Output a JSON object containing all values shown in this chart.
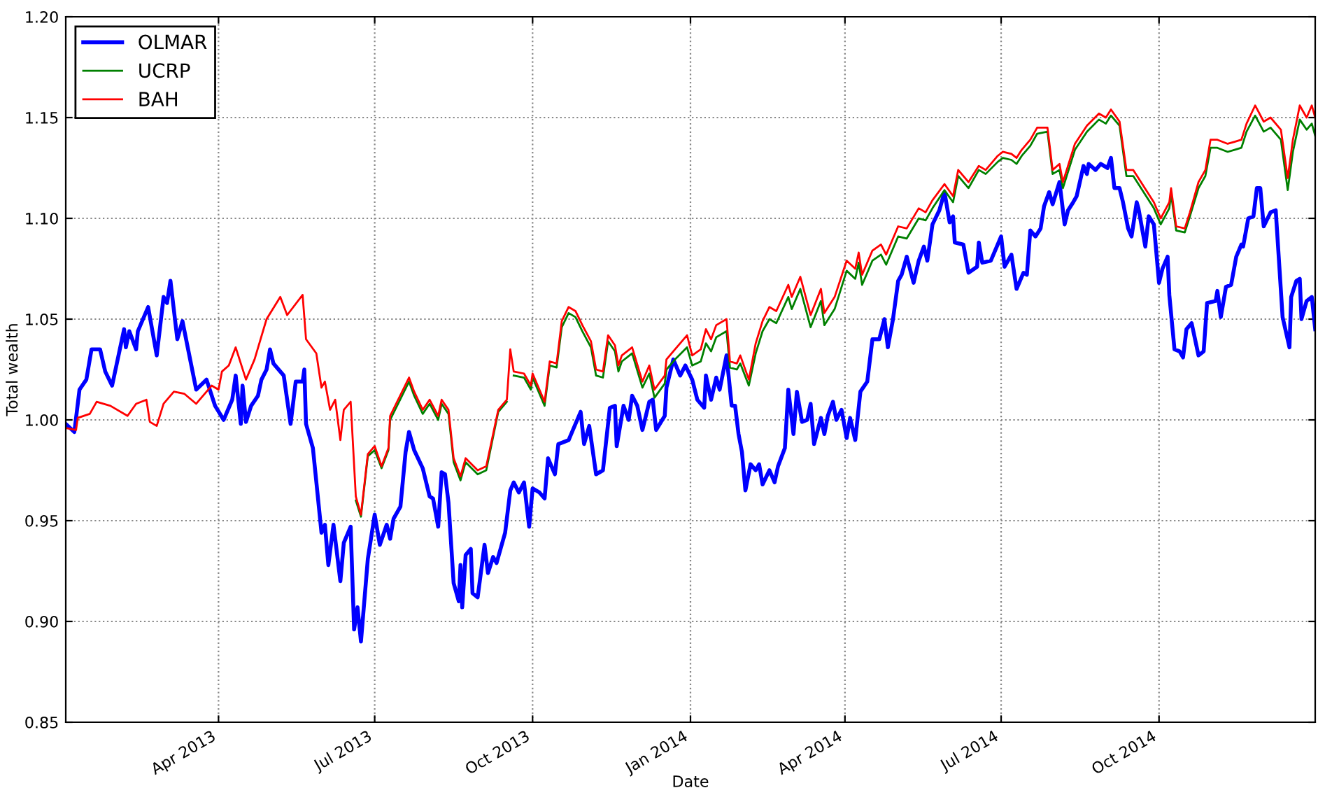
{
  "chart_data": {
    "type": "line",
    "xlabel": "Date",
    "ylabel": "Total wealth",
    "xlim": [
      "2013-01-02",
      "2014-12-31"
    ],
    "ylim": [
      0.85,
      1.2
    ],
    "xticks": [
      {
        "value": "2013-04-01",
        "label": "Apr 2013"
      },
      {
        "value": "2013-07-01",
        "label": "Jul 2013"
      },
      {
        "value": "2013-10-01",
        "label": "Oct 2013"
      },
      {
        "value": "2014-01-01",
        "label": "Jan 2014"
      },
      {
        "value": "2014-04-01",
        "label": "Apr 2014"
      },
      {
        "value": "2014-07-01",
        "label": "Jul 2014"
      },
      {
        "value": "2014-10-01",
        "label": "Oct 2014"
      }
    ],
    "yticks": [
      {
        "value": 0.85,
        "label": "0.85"
      },
      {
        "value": 0.9,
        "label": "0.90"
      },
      {
        "value": 0.95,
        "label": "0.95"
      },
      {
        "value": 1.0,
        "label": "1.00"
      },
      {
        "value": 1.05,
        "label": "1.05"
      },
      {
        "value": 1.1,
        "label": "1.10"
      },
      {
        "value": 1.15,
        "label": "1.15"
      },
      {
        "value": 1.2,
        "label": "1.20"
      }
    ],
    "grid": true,
    "legend": "top left",
    "marker": "none",
    "line_style": "solid",
    "x": [
      "2013-01-02",
      "2013-01-08",
      "2013-01-09",
      "2013-01-16",
      "2013-01-20",
      "2013-01-28",
      "2013-02-07",
      "2013-02-12",
      "2013-02-18",
      "2013-02-20",
      "2013-02-24",
      "2013-02-28",
      "2013-03-06",
      "2013-03-12",
      "2013-03-19",
      "2013-03-28",
      "2013-04-01",
      "2013-04-03",
      "2013-04-07",
      "2013-04-11",
      "2013-04-17",
      "2013-04-22",
      "2013-04-29",
      "2013-05-07",
      "2013-05-11",
      "2013-05-20",
      "2013-05-22",
      "2013-05-28",
      "2013-05-31",
      "2013-06-02",
      "2013-06-05",
      "2013-06-08",
      "2013-06-11",
      "2013-06-13",
      "2013-06-17",
      "2013-06-20",
      "2013-06-23",
      "2013-06-27",
      "2013-07-01",
      "2013-07-05",
      "2013-07-09",
      "2013-07-10",
      "2013-07-21",
      "2013-07-24",
      "2013-07-29",
      "2013-08-02",
      "2013-08-07",
      "2013-08-09",
      "2013-08-13",
      "2013-08-16",
      "2013-08-20",
      "2013-08-23",
      "2013-08-30",
      "2013-09-04",
      "2013-09-11",
      "2013-09-16",
      "2013-09-18",
      "2013-09-20",
      "2013-09-26",
      "2013-09-30",
      "2013-10-01",
      "2013-10-08",
      "2013-10-11",
      "2013-10-15",
      "2013-10-18",
      "2013-10-22",
      "2013-10-26",
      "2013-10-30",
      "2013-11-04",
      "2013-11-07",
      "2013-11-11",
      "2013-11-14",
      "2013-11-18",
      "2013-11-20",
      "2013-11-22",
      "2013-11-28",
      "2013-12-04",
      "2013-12-08",
      "2013-12-11",
      "2013-12-17",
      "2013-12-18",
      "2013-12-23",
      "2013-12-30",
      "2014-01-02",
      "2014-01-07",
      "2014-01-10",
      "2014-01-13",
      "2014-01-16",
      "2014-01-22",
      "2014-01-24",
      "2014-01-28",
      "2014-01-30",
      "2014-02-04",
      "2014-02-08",
      "2014-02-12",
      "2014-02-16",
      "2014-02-20",
      "2014-02-27",
      "2014-03-01",
      "2014-03-06",
      "2014-03-12",
      "2014-03-18",
      "2014-03-20",
      "2014-03-26",
      "2014-04-02",
      "2014-04-07",
      "2014-04-09",
      "2014-04-11",
      "2014-04-17",
      "2014-04-22",
      "2014-04-25",
      "2014-05-02",
      "2014-05-07",
      "2014-05-14",
      "2014-05-18",
      "2014-05-22",
      "2014-05-29",
      "2014-06-03",
      "2014-06-06",
      "2014-06-12",
      "2014-06-18",
      "2014-06-22",
      "2014-06-29",
      "2014-07-02",
      "2014-07-07",
      "2014-07-10",
      "2014-07-13",
      "2014-07-16",
      "2014-07-18",
      "2014-07-22",
      "2014-07-28",
      "2014-07-31",
      "2014-08-04",
      "2014-08-06",
      "2014-08-13",
      "2014-08-20",
      "2014-08-27",
      "2014-08-31",
      "2014-09-03",
      "2014-09-08",
      "2014-09-12",
      "2014-09-16",
      "2014-09-22",
      "2014-09-28",
      "2014-10-02",
      "2014-10-07",
      "2014-10-08",
      "2014-10-11",
      "2014-10-16",
      "2014-10-19",
      "2014-10-24",
      "2014-10-28",
      "2014-10-31",
      "2014-11-04",
      "2014-11-10",
      "2014-11-14",
      "2014-11-18",
      "2014-11-21",
      "2014-11-26",
      "2014-12-01",
      "2014-12-05",
      "2014-12-11",
      "2014-12-15",
      "2014-12-18",
      "2014-12-22",
      "2014-12-26",
      "2014-12-29",
      "2014-12-31"
    ],
    "series": [
      {
        "name": "OLMAR",
        "color": "#0000ff",
        "x": [
          "2013-01-02",
          "2013-01-07",
          "2013-01-10",
          "2013-01-14",
          "2013-01-17",
          "2013-01-22",
          "2013-01-25",
          "2013-01-29",
          "2013-02-05",
          "2013-02-06",
          "2013-02-08",
          "2013-02-12",
          "2013-02-13",
          "2013-02-19",
          "2013-02-24",
          "2013-02-28",
          "2013-03-02",
          "2013-03-04",
          "2013-03-08",
          "2013-03-11",
          "2013-03-15",
          "2013-03-19",
          "2013-03-25",
          "2013-03-30",
          "2013-04-04",
          "2013-04-09",
          "2013-04-11",
          "2013-04-14",
          "2013-04-15",
          "2013-04-17",
          "2013-04-20",
          "2013-04-24",
          "2013-04-26",
          "2013-04-29",
          "2013-05-01",
          "2013-05-03",
          "2013-05-09",
          "2013-05-13",
          "2013-05-16",
          "2013-05-20",
          "2013-05-21",
          "2013-05-22",
          "2013-05-26",
          "2013-05-31",
          "2013-06-02",
          "2013-06-04",
          "2013-06-07",
          "2013-06-11",
          "2013-06-13",
          "2013-06-17",
          "2013-06-19",
          "2013-06-21",
          "2013-06-23",
          "2013-06-27",
          "2013-07-01",
          "2013-07-04",
          "2013-07-08",
          "2013-07-10",
          "2013-07-12",
          "2013-07-16",
          "2013-07-19",
          "2013-07-21",
          "2013-07-24",
          "2013-07-29",
          "2013-08-02",
          "2013-08-04",
          "2013-08-07",
          "2013-08-09",
          "2013-08-11",
          "2013-08-13",
          "2013-08-16",
          "2013-08-19",
          "2013-08-20",
          "2013-08-21",
          "2013-08-23",
          "2013-08-26",
          "2013-08-27",
          "2013-08-30",
          "2013-09-03",
          "2013-09-05",
          "2013-09-08",
          "2013-09-10",
          "2013-09-15",
          "2013-09-18",
          "2013-09-20",
          "2013-09-23",
          "2013-09-26",
          "2013-09-29",
          "2013-10-01",
          "2013-10-05",
          "2013-10-08",
          "2013-10-10",
          "2013-10-14",
          "2013-10-16",
          "2013-10-22",
          "2013-10-24",
          "2013-10-29",
          "2013-10-31",
          "2013-11-03",
          "2013-11-05",
          "2013-11-07",
          "2013-11-11",
          "2013-11-15",
          "2013-11-18",
          "2013-11-19",
          "2013-11-23",
          "2013-11-26",
          "2013-11-28",
          "2013-12-01",
          "2013-12-04",
          "2013-12-08",
          "2013-12-10",
          "2013-12-12",
          "2013-12-17",
          "2013-12-18",
          "2013-12-22",
          "2013-12-26",
          "2013-12-29",
          "2014-01-02",
          "2014-01-05",
          "2014-01-09",
          "2014-01-10",
          "2014-01-13",
          "2014-01-16",
          "2014-01-18",
          "2014-01-22",
          "2014-01-25",
          "2014-01-27",
          "2014-01-29",
          "2014-01-31",
          "2014-02-02",
          "2014-02-05",
          "2014-02-08",
          "2014-02-10",
          "2014-02-12",
          "2014-02-16",
          "2014-02-19",
          "2014-02-21",
          "2014-02-25",
          "2014-02-27",
          "2014-03-02",
          "2014-03-04",
          "2014-03-07",
          "2014-03-10",
          "2014-03-12",
          "2014-03-14",
          "2014-03-18",
          "2014-03-20",
          "2014-03-22",
          "2014-03-25",
          "2014-03-27",
          "2014-03-30",
          "2014-04-02",
          "2014-04-04",
          "2014-04-07",
          "2014-04-10",
          "2014-04-14",
          "2014-04-17",
          "2014-04-21",
          "2014-04-24",
          "2014-04-26",
          "2014-04-29",
          "2014-05-02",
          "2014-05-04",
          "2014-05-07",
          "2014-05-11",
          "2014-05-14",
          "2014-05-17",
          "2014-05-19",
          "2014-05-22",
          "2014-05-26",
          "2014-05-29",
          "2014-06-01",
          "2014-06-03",
          "2014-06-04",
          "2014-06-09",
          "2014-06-12",
          "2014-06-17",
          "2014-06-18",
          "2014-06-20",
          "2014-06-25",
          "2014-07-01",
          "2014-07-03",
          "2014-07-07",
          "2014-07-10",
          "2014-07-14",
          "2014-07-16",
          "2014-07-18",
          "2014-07-21",
          "2014-07-24",
          "2014-07-26",
          "2014-07-29",
          "2014-07-31",
          "2014-08-04",
          "2014-08-07",
          "2014-08-09",
          "2014-08-12",
          "2014-08-14",
          "2014-08-18",
          "2014-08-20",
          "2014-08-21",
          "2014-08-25",
          "2014-08-28",
          "2014-09-01",
          "2014-09-03",
          "2014-09-05",
          "2014-09-08",
          "2014-09-10",
          "2014-09-13",
          "2014-09-15",
          "2014-09-18",
          "2014-09-19",
          "2014-09-23",
          "2014-09-25",
          "2014-09-28",
          "2014-10-01",
          "2014-10-03",
          "2014-10-06",
          "2014-10-07",
          "2014-10-10",
          "2014-10-13",
          "2014-10-15",
          "2014-10-17",
          "2014-10-20",
          "2014-10-22",
          "2014-10-24",
          "2014-10-27",
          "2014-10-29",
          "2014-11-03",
          "2014-11-04",
          "2014-11-06",
          "2014-11-09",
          "2014-11-12",
          "2014-11-15",
          "2014-11-18",
          "2014-11-19",
          "2014-11-22",
          "2014-11-25",
          "2014-11-27",
          "2014-11-29",
          "2014-12-01",
          "2014-12-05",
          "2014-12-08",
          "2014-12-12",
          "2014-12-16",
          "2014-12-17",
          "2014-12-20",
          "2014-12-22",
          "2014-12-23",
          "2014-12-26",
          "2014-12-29",
          "2014-12-31"
        ],
        "values": [
          0.998,
          0.994,
          1.015,
          1.02,
          1.035,
          1.035,
          1.024,
          1.017,
          1.045,
          1.036,
          1.044,
          1.035,
          1.044,
          1.056,
          1.032,
          1.061,
          1.058,
          1.069,
          1.04,
          1.049,
          1.032,
          1.015,
          1.02,
          1.007,
          1.0,
          1.01,
          1.022,
          0.998,
          1.017,
          0.999,
          1.007,
          1.012,
          1.02,
          1.025,
          1.035,
          1.028,
          1.022,
          0.998,
          1.019,
          1.019,
          1.025,
          0.998,
          0.986,
          0.944,
          0.948,
          0.928,
          0.948,
          0.92,
          0.939,
          0.947,
          0.896,
          0.907,
          0.89,
          0.931,
          0.953,
          0.938,
          0.948,
          0.941,
          0.951,
          0.957,
          0.984,
          0.994,
          0.985,
          0.976,
          0.962,
          0.961,
          0.947,
          0.974,
          0.973,
          0.959,
          0.919,
          0.91,
          0.928,
          0.907,
          0.933,
          0.936,
          0.914,
          0.912,
          0.938,
          0.924,
          0.932,
          0.929,
          0.944,
          0.965,
          0.969,
          0.964,
          0.969,
          0.947,
          0.966,
          0.964,
          0.961,
          0.981,
          0.973,
          0.988,
          0.99,
          0.994,
          1.004,
          0.988,
          0.997,
          0.985,
          0.973,
          0.975,
          1.006,
          1.007,
          0.987,
          1.007,
          1.0,
          1.012,
          1.007,
          0.995,
          1.009,
          1.01,
          0.995,
          1.002,
          1.016,
          1.03,
          1.022,
          1.027,
          1.02,
          1.01,
          1.006,
          1.022,
          1.01,
          1.021,
          1.015,
          1.032,
          1.007,
          1.007,
          0.993,
          0.984,
          0.965,
          0.978,
          0.975,
          0.978,
          0.968,
          0.975,
          0.969,
          0.977,
          0.986,
          1.015,
          0.993,
          1.014,
          0.999,
          1.0,
          1.008,
          0.988,
          1.001,
          0.993,
          1.002,
          1.009,
          1.0,
          1.005,
          0.991,
          1.001,
          0.99,
          1.014,
          1.019,
          1.04,
          1.04,
          1.05,
          1.036,
          1.05,
          1.069,
          1.072,
          1.081,
          1.068,
          1.079,
          1.086,
          1.079,
          1.097,
          1.104,
          1.113,
          1.098,
          1.101,
          1.088,
          1.087,
          1.073,
          1.076,
          1.088,
          1.078,
          1.079,
          1.091,
          1.076,
          1.082,
          1.065,
          1.073,
          1.072,
          1.094,
          1.091,
          1.095,
          1.106,
          1.113,
          1.107,
          1.118,
          1.097,
          1.104,
          1.108,
          1.111,
          1.126,
          1.122,
          1.127,
          1.124,
          1.127,
          1.125,
          1.13,
          1.115,
          1.115,
          1.108,
          1.095,
          1.091,
          1.108,
          1.105,
          1.086,
          1.101,
          1.097,
          1.068,
          1.075,
          1.081,
          1.062,
          1.035,
          1.034,
          1.031,
          1.045,
          1.048,
          1.04,
          1.032,
          1.034,
          1.058,
          1.059,
          1.064,
          1.051,
          1.066,
          1.067,
          1.081,
          1.087,
          1.086,
          1.1,
          1.101,
          1.115,
          1.115,
          1.096,
          1.103,
          1.104,
          1.051,
          1.036,
          1.061,
          1.069,
          1.07,
          1.05,
          1.059,
          1.061,
          1.045
        ]
      },
      {
        "name": "UCRP",
        "color": "#008000",
        "values": [
          null,
          null,
          null,
          null,
          null,
          null,
          null,
          null,
          null,
          null,
          null,
          null,
          null,
          null,
          null,
          null,
          null,
          null,
          null,
          null,
          null,
          null,
          null,
          null,
          null,
          null,
          null,
          null,
          null,
          null,
          null,
          null,
          null,
          null,
          null,
          0.96,
          0.952,
          0.982,
          0.985,
          0.976,
          0.985,
          1.0,
          1.019,
          1.012,
          1.003,
          1.008,
          1.0,
          1.008,
          1.003,
          0.979,
          0.97,
          0.979,
          0.973,
          0.975,
          1.004,
          1.009,
          null,
          1.022,
          1.021,
          1.015,
          1.021,
          1.007,
          1.027,
          1.026,
          1.046,
          1.053,
          1.051,
          1.044,
          1.036,
          1.022,
          1.021,
          1.039,
          1.034,
          1.024,
          1.029,
          1.033,
          1.016,
          1.023,
          1.011,
          1.018,
          1.025,
          1.03,
          1.036,
          1.027,
          1.029,
          1.038,
          1.034,
          1.041,
          1.044,
          1.026,
          1.025,
          1.028,
          1.017,
          1.033,
          1.044,
          1.05,
          1.048,
          1.061,
          1.055,
          1.065,
          1.046,
          1.059,
          1.047,
          1.055,
          1.074,
          1.07,
          1.078,
          1.067,
          1.079,
          1.082,
          1.077,
          1.091,
          1.09,
          1.1,
          1.099,
          1.105,
          1.114,
          1.108,
          1.121,
          1.115,
          1.124,
          1.122,
          1.128,
          1.13,
          1.129,
          1.127,
          1.131,
          1.134,
          1.136,
          1.142,
          1.143,
          1.122,
          1.124,
          1.115,
          1.134,
          1.143,
          1.149,
          1.147,
          1.151,
          1.146,
          1.121,
          1.121,
          1.113,
          1.105,
          1.097,
          1.105,
          1.112,
          1.094,
          1.093,
          1.101,
          1.115,
          1.121,
          1.135,
          1.135,
          1.133,
          1.134,
          1.135,
          1.143,
          1.151,
          1.143,
          1.145,
          1.139,
          1.114,
          1.133,
          1.149,
          1.144,
          1.147,
          1.141
        ]
      },
      {
        "name": "BAH",
        "color": "#ff0000",
        "values": [
          0.996,
          0.995,
          1.001,
          1.003,
          1.009,
          1.007,
          1.002,
          1.008,
          1.01,
          0.999,
          0.997,
          1.008,
          1.014,
          1.013,
          1.008,
          1.017,
          1.015,
          1.024,
          1.027,
          1.036,
          1.02,
          1.03,
          1.05,
          1.061,
          1.052,
          1.062,
          1.04,
          1.033,
          1.016,
          1.019,
          1.005,
          1.01,
          0.99,
          1.005,
          1.009,
          0.962,
          0.953,
          0.983,
          0.987,
          0.977,
          0.986,
          1.002,
          1.021,
          1.014,
          1.005,
          1.01,
          1.002,
          1.01,
          1.005,
          0.981,
          0.972,
          0.981,
          0.975,
          0.977,
          1.005,
          1.01,
          1.035,
          1.024,
          1.023,
          1.017,
          1.023,
          1.009,
          1.029,
          1.028,
          1.049,
          1.056,
          1.054,
          1.047,
          1.039,
          1.025,
          1.024,
          1.042,
          1.037,
          1.027,
          1.032,
          1.036,
          1.019,
          1.027,
          1.015,
          1.022,
          1.03,
          1.035,
          1.042,
          1.032,
          1.035,
          1.045,
          1.04,
          1.047,
          1.05,
          1.029,
          1.028,
          1.032,
          1.02,
          1.038,
          1.049,
          1.056,
          1.054,
          1.067,
          1.061,
          1.071,
          1.052,
          1.065,
          1.053,
          1.061,
          1.079,
          1.075,
          1.083,
          1.072,
          1.084,
          1.087,
          1.082,
          1.096,
          1.095,
          1.105,
          1.103,
          1.109,
          1.117,
          1.111,
          1.124,
          1.118,
          1.126,
          1.124,
          1.131,
          1.133,
          1.132,
          1.13,
          1.134,
          1.137,
          1.139,
          1.145,
          1.145,
          1.124,
          1.127,
          1.118,
          1.137,
          1.146,
          1.152,
          1.15,
          1.154,
          1.148,
          1.124,
          1.124,
          1.116,
          1.108,
          1.1,
          1.108,
          1.115,
          1.096,
          1.095,
          1.103,
          1.118,
          1.124,
          1.139,
          1.139,
          1.137,
          1.138,
          1.139,
          1.147,
          1.156,
          1.148,
          1.15,
          1.144,
          1.12,
          1.139,
          1.156,
          1.15,
          1.156,
          1.15
        ]
      }
    ]
  }
}
